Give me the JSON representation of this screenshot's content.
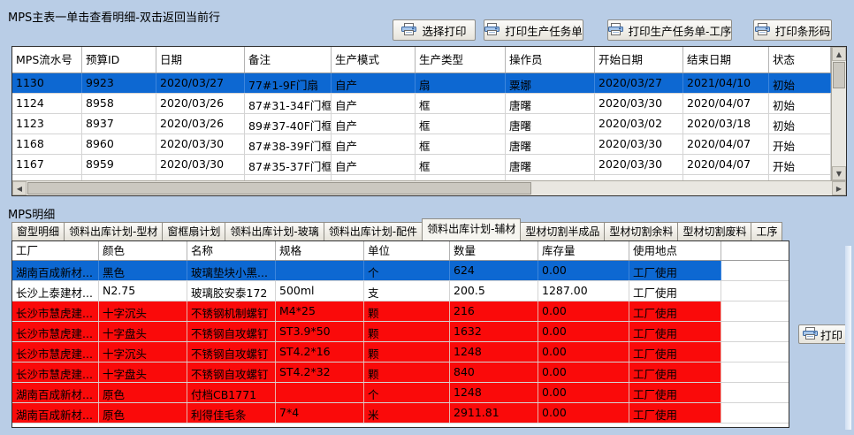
{
  "colors": {
    "background": "#b9cde6",
    "selection_row": "#0d68d2",
    "alert_row": "#fa0a0a",
    "grid_text": "#000000"
  },
  "main_panel": {
    "title": "MPS主表一单击查看明细-双击返回当前行",
    "buttons": [
      "选择打印",
      "打印生产任务单",
      "打印生产任务单-工序",
      "打印条形码"
    ],
    "table": {
      "columns": [
        "MPS流水号",
        "预算ID",
        "日期",
        "备注",
        "生产模式",
        "生产类型",
        "操作员",
        "开始日期",
        "结束日期",
        "状态"
      ],
      "selected_row_index": 0,
      "rows": [
        [
          "1130",
          "9923",
          "2020/03/27",
          "77#1-9F门扇",
          "自产",
          "扇",
          "粟娜",
          "2020/03/27",
          "2021/04/10",
          "初始"
        ],
        [
          "1124",
          "8958",
          "2020/03/26",
          "87#31-34F门框",
          "自产",
          "框",
          "唐曙",
          "2020/03/30",
          "2020/04/07",
          "初始"
        ],
        [
          "1123",
          "8937",
          "2020/03/26",
          "89#37-40F门框",
          "自产",
          "框",
          "唐曙",
          "2020/03/02",
          "2020/03/18",
          "初始"
        ],
        [
          "1168",
          "8960",
          "2020/03/30",
          "87#38-39F门框",
          "自产",
          "框",
          "唐曙",
          "2020/03/30",
          "2020/04/07",
          "开始"
        ],
        [
          "1167",
          "8959",
          "2020/03/30",
          "87#35-37F门框",
          "自产",
          "框",
          "唐曙",
          "2020/03/30",
          "2020/04/07",
          "开始"
        ]
      ]
    }
  },
  "detail_panel": {
    "title": "MPS明细",
    "tabs": [
      "窗型明细",
      "领料出库计划-型材",
      "窗框扇计划",
      "领料出库计划-玻璃",
      "领料出库计划-配件",
      "领料出库计划-辅材",
      "型材切割半成品",
      "型材切割余料",
      "型材切割废料",
      "工序"
    ],
    "active_tab": "领料出库计划-辅材",
    "print_button": "打印",
    "table": {
      "columns": [
        "工厂",
        "颜色",
        "名称",
        "规格",
        "单位",
        "数量",
        "库存量",
        "使用地点"
      ],
      "rows": [
        {
          "cells": [
            "湖南百成新材...",
            "黑色",
            "玻璃垫块小黑...",
            "",
            "个",
            "624",
            "0.00",
            "工厂使用"
          ],
          "state": "selected"
        },
        {
          "cells": [
            "长沙上泰建材...",
            "N2.75",
            "玻璃胶安泰172",
            "500ml",
            "支",
            "200.5",
            "1287.00",
            "工厂使用"
          ],
          "state": "normal"
        },
        {
          "cells": [
            "长沙市慧虎建...",
            "十字沉头",
            "不锈钢机制螺钉",
            "M4*25",
            "颗",
            "216",
            "0.00",
            "工厂使用"
          ],
          "state": "alert"
        },
        {
          "cells": [
            "长沙市慧虎建...",
            "十字盘头",
            "不锈钢自攻螺钉",
            "ST3.9*50",
            "颗",
            "1632",
            "0.00",
            "工厂使用"
          ],
          "state": "alert"
        },
        {
          "cells": [
            "长沙市慧虎建...",
            "十字沉头",
            "不锈钢自攻螺钉",
            "ST4.2*16",
            "颗",
            "1248",
            "0.00",
            "工厂使用"
          ],
          "state": "alert"
        },
        {
          "cells": [
            "长沙市慧虎建...",
            "十字盘头",
            "不锈钢自攻螺钉",
            "ST4.2*32",
            "颗",
            "840",
            "0.00",
            "工厂使用"
          ],
          "state": "alert"
        },
        {
          "cells": [
            "湖南百成新材...",
            "原色",
            "付档CB1771",
            "",
            "个",
            "1248",
            "0.00",
            "工厂使用"
          ],
          "state": "alert"
        },
        {
          "cells": [
            "湖南百成新材...",
            "原色",
            "利得佳毛条",
            "7*4",
            "米",
            "2911.81",
            "0.00",
            "工厂使用"
          ],
          "state": "alert"
        }
      ]
    }
  }
}
